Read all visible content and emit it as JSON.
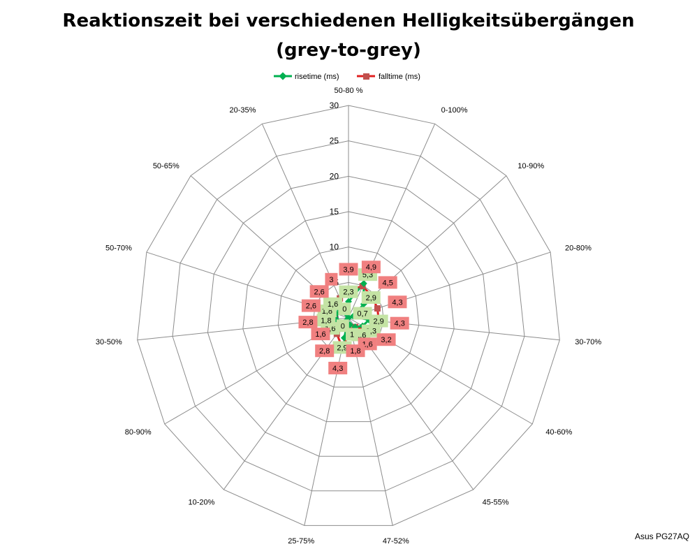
{
  "chart_data": {
    "type": "radar",
    "title": "Reaktionszeit bei verschiedenen Helligkeitsübergängen",
    "subtitle": "(grey-to-grey)",
    "categories": [
      "50-80 %",
      "0-100%",
      "10-90%",
      "20-80%",
      "30-70%",
      "40-60%",
      "45-55%",
      "47-52%",
      "25-75%",
      "10-20%",
      "80-90%",
      "30-50%",
      "50-70%",
      "50-65%",
      "20-35%"
    ],
    "series": [
      {
        "name": "risetime (ms)",
        "color": "#00b050",
        "label_bg": "#c4e3a4",
        "values": [
          2.3,
          5.3,
          2.9,
          0.7,
          2.9,
          2.3,
          1.6,
          1,
          2.9,
          0,
          1.6,
          1.8,
          1.8,
          1.6,
          0
        ],
        "labels": [
          "2,3",
          "5,3",
          "2,9",
          "0,7",
          "2,9",
          "2,3",
          "1,6",
          "1",
          "2,9",
          "0",
          "1,6",
          "1,8",
          "1,8",
          "1,6",
          "0"
        ]
      },
      {
        "name": "falltime (ms)",
        "color": "#e02020",
        "label_bg": "#f08080",
        "values": [
          3.9,
          4.9,
          4.5,
          4.3,
          4.3,
          3.2,
          1.6,
          1.8,
          4.3,
          2.8,
          1.6,
          2.8,
          2.6,
          2.6,
          3
        ],
        "labels": [
          "3,9",
          "4,9",
          "4,5",
          "4,3",
          "4,3",
          "3,2",
          "1,6",
          "1,8",
          "4,3",
          "2,8",
          "1,6",
          "2,8",
          "2,6",
          "2,6",
          "3"
        ]
      }
    ],
    "rmax": 30,
    "ticks": [
      0,
      5,
      10,
      15,
      20,
      25,
      30
    ],
    "grid": true,
    "legend": "top"
  },
  "footer": "Asus PG27AQ"
}
